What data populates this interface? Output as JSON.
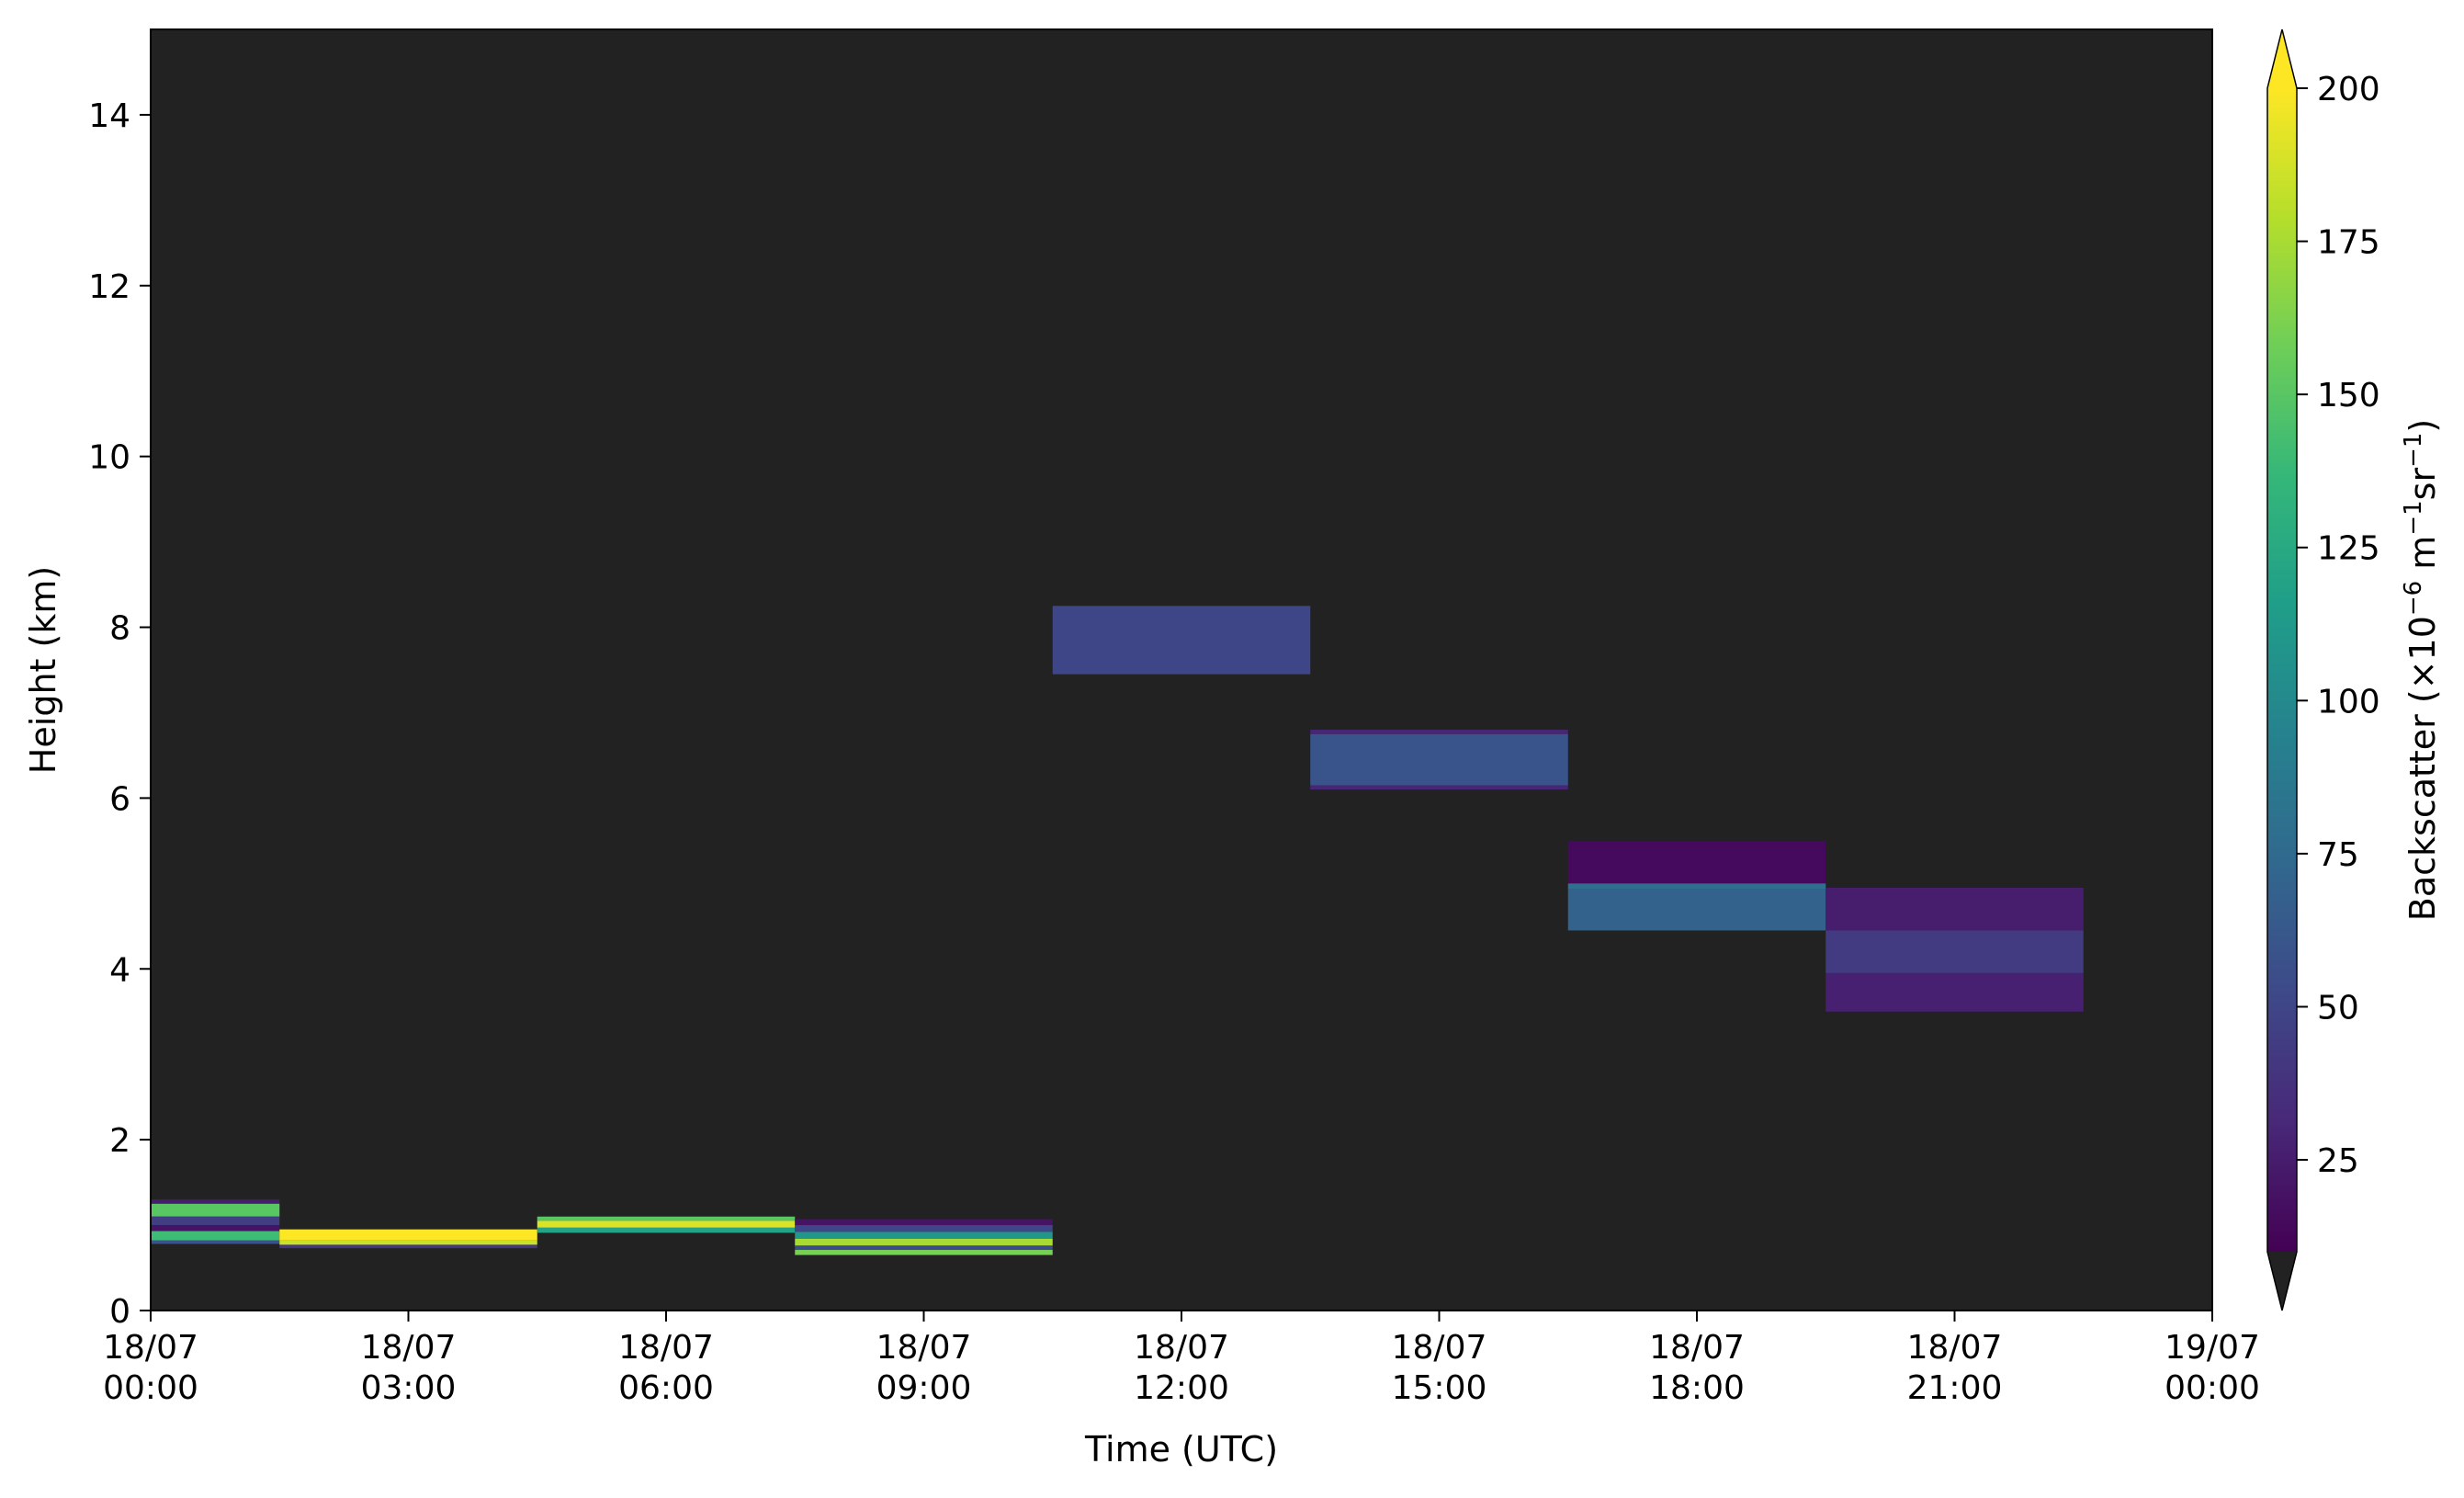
{
  "chart_data": {
    "type": "heatmap",
    "title": "",
    "xlabel": "Time (UTC)",
    "ylabel": "Height (km)",
    "xlim": [
      "18/07 00:00",
      "19/07 00:00"
    ],
    "ylim": [
      0,
      15
    ],
    "grid": false,
    "background_color": "#222222",
    "x_ticks": [
      {
        "value": "18/07 00:00",
        "line1": "18/07",
        "line2": "00:00"
      },
      {
        "value": "18/07 03:00",
        "line1": "18/07",
        "line2": "03:00"
      },
      {
        "value": "18/07 06:00",
        "line1": "18/07",
        "line2": "06:00"
      },
      {
        "value": "18/07 09:00",
        "line1": "18/07",
        "line2": "09:00"
      },
      {
        "value": "18/07 12:00",
        "line1": "18/07",
        "line2": "12:00"
      },
      {
        "value": "18/07 15:00",
        "line1": "18/07",
        "line2": "15:00"
      },
      {
        "value": "18/07 18:00",
        "line1": "18/07",
        "line2": "18:00"
      },
      {
        "value": "18/07 21:00",
        "line1": "18/07",
        "line2": "21:00"
      },
      {
        "value": "19/07 00:00",
        "line1": "19/07",
        "line2": "00:00"
      }
    ],
    "y_ticks": [
      0,
      2,
      4,
      6,
      8,
      10,
      12,
      14
    ],
    "colorbar": {
      "label_main": "Backscatter (×10",
      "label_exp1": "−6",
      "label_mid": " m",
      "label_exp2": "−1",
      "label_mid2": "sr",
      "label_exp3": "−1",
      "label_end": ")",
      "colormap": "viridis",
      "vmin": 10,
      "vmax": 200,
      "extend": "both",
      "under_color": "#222222",
      "over_color": "#fde725",
      "ticks": [
        25,
        50,
        75,
        100,
        125,
        150,
        175,
        200
      ]
    },
    "cells": [
      {
        "t_start": "18/07 00:00",
        "t_end": "18/07 01:30",
        "h_start": 1.25,
        "h_end": 1.3,
        "value": 25
      },
      {
        "t_start": "18/07 00:00",
        "t_end": "18/07 01:30",
        "h_start": 1.1,
        "h_end": 1.25,
        "value": 150
      },
      {
        "t_start": "18/07 00:00",
        "t_end": "18/07 01:30",
        "h_start": 1.0,
        "h_end": 1.1,
        "value": 45
      },
      {
        "t_start": "18/07 00:00",
        "t_end": "18/07 01:30",
        "h_start": 0.93,
        "h_end": 1.0,
        "value": 20
      },
      {
        "t_start": "18/07 00:00",
        "t_end": "18/07 01:30",
        "h_start": 0.82,
        "h_end": 0.93,
        "value": 140
      },
      {
        "t_start": "18/07 00:00",
        "t_end": "18/07 01:30",
        "h_start": 0.78,
        "h_end": 0.82,
        "value": 60
      },
      {
        "t_start": "18/07 01:30",
        "t_end": "18/07 04:30",
        "h_start": 0.82,
        "h_end": 0.95,
        "value": 200
      },
      {
        "t_start": "18/07 01:30",
        "t_end": "18/07 04:30",
        "h_start": 0.77,
        "h_end": 0.82,
        "value": 185
      },
      {
        "t_start": "18/07 01:30",
        "t_end": "18/07 04:30",
        "h_start": 0.73,
        "h_end": 0.77,
        "value": 40
      },
      {
        "t_start": "18/07 04:30",
        "t_end": "18/07 07:30",
        "h_start": 1.05,
        "h_end": 1.1,
        "value": 150
      },
      {
        "t_start": "18/07 04:30",
        "t_end": "18/07 07:30",
        "h_start": 0.97,
        "h_end": 1.05,
        "value": 190
      },
      {
        "t_start": "18/07 04:30",
        "t_end": "18/07 07:30",
        "h_start": 0.91,
        "h_end": 0.97,
        "value": 120
      },
      {
        "t_start": "18/07 07:30",
        "t_end": "18/07 10:30",
        "h_start": 1.0,
        "h_end": 1.07,
        "value": 20
      },
      {
        "t_start": "18/07 07:30",
        "t_end": "18/07 10:30",
        "h_start": 0.92,
        "h_end": 1.0,
        "value": 50
      },
      {
        "t_start": "18/07 07:30",
        "t_end": "18/07 10:30",
        "h_start": 0.84,
        "h_end": 0.92,
        "value": 110
      },
      {
        "t_start": "18/07 07:30",
        "t_end": "18/07 10:30",
        "h_start": 0.76,
        "h_end": 0.84,
        "value": 175
      },
      {
        "t_start": "18/07 07:30",
        "t_end": "18/07 10:30",
        "h_start": 0.71,
        "h_end": 0.76,
        "value": 55
      },
      {
        "t_start": "18/07 07:30",
        "t_end": "18/07 10:30",
        "h_start": 0.65,
        "h_end": 0.71,
        "value": 160
      },
      {
        "t_start": "18/07 10:30",
        "t_end": "18/07 13:30",
        "h_start": 7.45,
        "h_end": 8.25,
        "value": 50
      },
      {
        "t_start": "18/07 13:30",
        "t_end": "18/07 16:30",
        "h_start": 6.1,
        "h_end": 6.15,
        "value": 30
      },
      {
        "t_start": "18/07 13:30",
        "t_end": "18/07 16:30",
        "h_start": 6.15,
        "h_end": 6.75,
        "value": 60
      },
      {
        "t_start": "18/07 13:30",
        "t_end": "18/07 16:30",
        "h_start": 6.75,
        "h_end": 6.8,
        "value": 30
      },
      {
        "t_start": "18/07 16:30",
        "t_end": "18/07 19:30",
        "h_start": 5.0,
        "h_end": 5.5,
        "value": 15
      },
      {
        "t_start": "18/07 16:30",
        "t_end": "18/07 19:30",
        "h_start": 4.93,
        "h_end": 5.0,
        "value": 80
      },
      {
        "t_start": "18/07 16:30",
        "t_end": "18/07 19:30",
        "h_start": 4.45,
        "h_end": 4.93,
        "value": 70
      },
      {
        "t_start": "18/07 19:30",
        "t_end": "18/07 22:30",
        "h_start": 4.45,
        "h_end": 4.95,
        "value": 25
      },
      {
        "t_start": "18/07 19:30",
        "t_end": "18/07 22:30",
        "h_start": 3.95,
        "h_end": 4.45,
        "value": 43
      },
      {
        "t_start": "18/07 19:30",
        "t_end": "18/07 22:30",
        "h_start": 3.5,
        "h_end": 3.95,
        "value": 27
      }
    ]
  }
}
